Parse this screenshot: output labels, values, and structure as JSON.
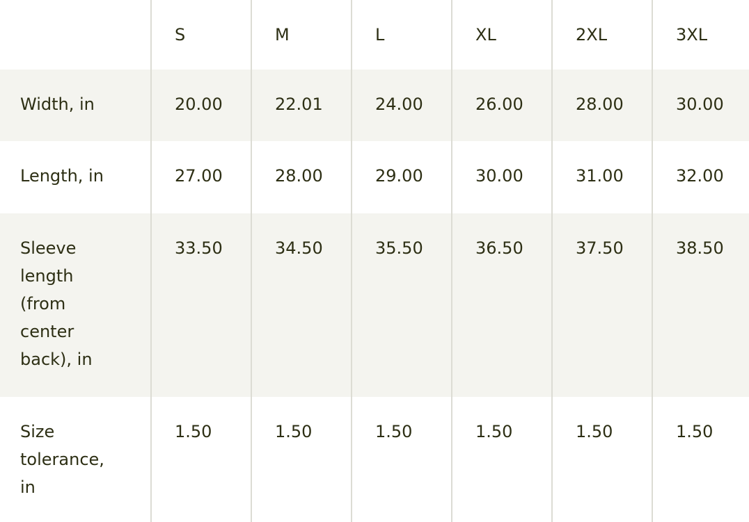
{
  "table": {
    "headers": [
      "",
      "S",
      "M",
      "L",
      "XL",
      "2XL",
      "3XL"
    ],
    "rows": [
      {
        "label": "Width, in",
        "values": [
          "20.00",
          "22.01",
          "24.00",
          "26.00",
          "28.00",
          "30.00"
        ]
      },
      {
        "label": "Length, in",
        "values": [
          "27.00",
          "28.00",
          "29.00",
          "30.00",
          "31.00",
          "32.00"
        ]
      },
      {
        "label": "Sleeve length (from center back), in",
        "values": [
          "33.50",
          "34.50",
          "35.50",
          "36.50",
          "37.50",
          "38.50"
        ]
      },
      {
        "label": "Size tolerance, in",
        "values": [
          "1.50",
          "1.50",
          "1.50",
          "1.50",
          "1.50",
          "1.50"
        ]
      }
    ]
  },
  "colors": {
    "text": "#2d2f14",
    "stripe": "#f4f4ef",
    "border": "#dcdcd4"
  }
}
